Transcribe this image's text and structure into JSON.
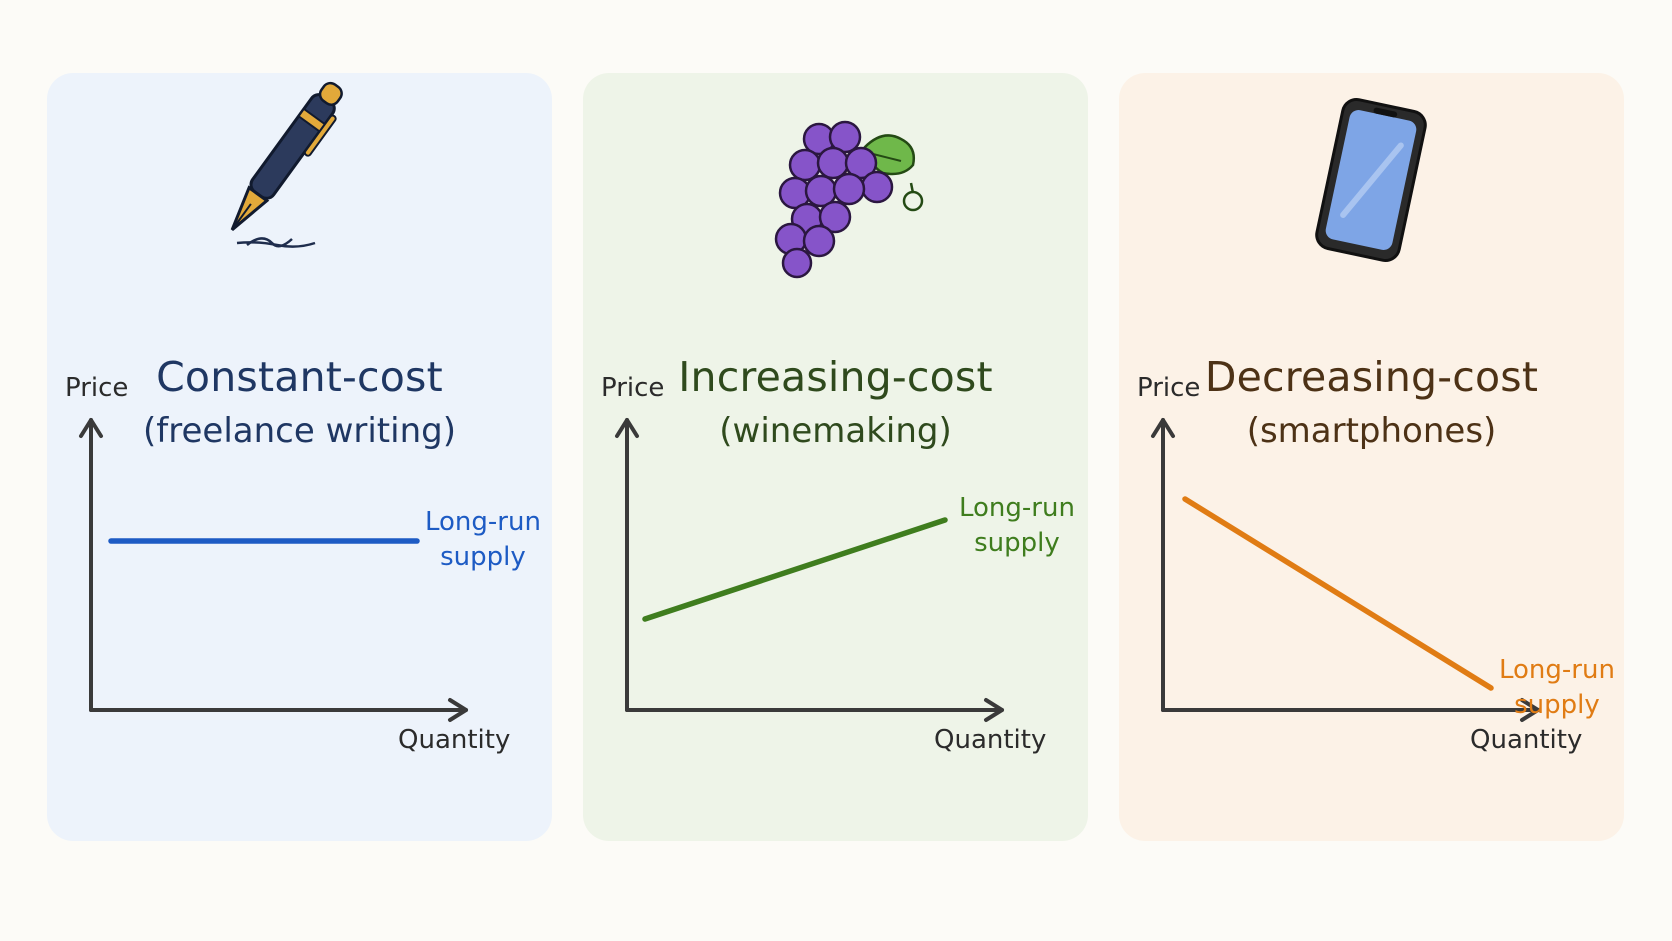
{
  "panels": [
    {
      "title": "Constant-cost",
      "subtitle": "(freelance writing)",
      "icon": "fountain-pen-icon",
      "bg": "#edf3fb",
      "text_color": "#1f3763",
      "line_color": "#1d5bc4",
      "x_axis_label": "Quantity",
      "y_axis_label": "Price",
      "curve_label_line1": "Long-run",
      "curve_label_line2": "supply",
      "curve": "horizontal"
    },
    {
      "title": "Increasing-cost",
      "subtitle": "(winemaking)",
      "icon": "grapes-icon",
      "bg": "#eef4e8",
      "text_color": "#2f4a1d",
      "line_color": "#3f7d1e",
      "x_axis_label": "Quantity",
      "y_axis_label": "Price",
      "curve_label_line1": "Long-run",
      "curve_label_line2": "supply",
      "curve": "upward-sloping"
    },
    {
      "title": "Decreasing-cost",
      "subtitle": "(smartphones)",
      "icon": "smartphone-icon",
      "bg": "#fcf2e7",
      "text_color": "#4d3216",
      "line_color": "#e07c14",
      "x_axis_label": "Quantity",
      "y_axis_label": "Price",
      "curve_label_line1": "Long-run",
      "curve_label_line2": "supply",
      "curve": "downward-sloping"
    }
  ]
}
